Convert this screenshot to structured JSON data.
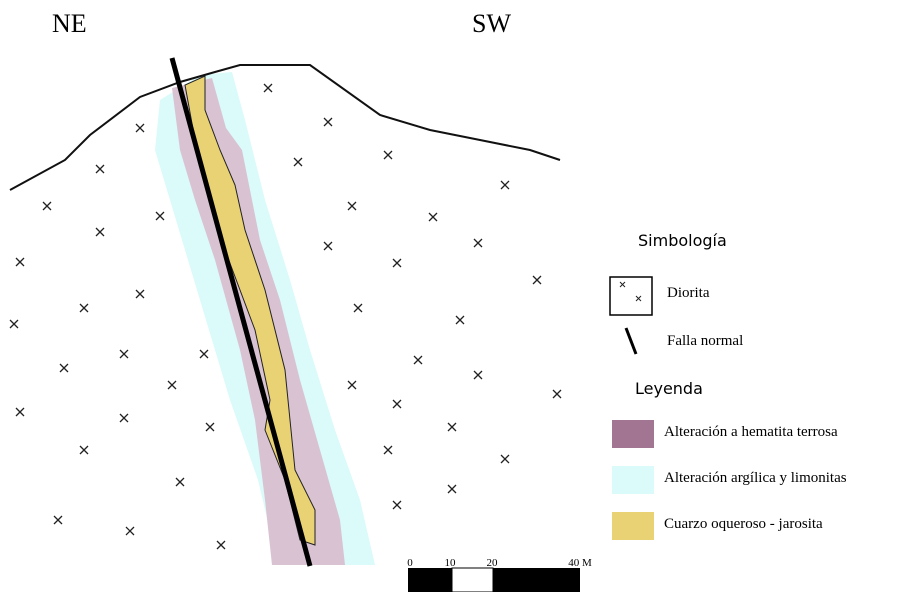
{
  "section": {
    "left_label": "NE",
    "right_label": "SW"
  },
  "legend": {
    "symbols_title": "Simbología",
    "symbols": [
      {
        "label": "Diorita"
      },
      {
        "label": "Falla normal"
      }
    ],
    "legend_title": "Leyenda",
    "items": [
      {
        "label": "Alteración a hematita terrosa",
        "color": "#a27593"
      },
      {
        "label": "Alteración argílica y limonitas",
        "color": "#dbfafa"
      },
      {
        "label": "Cuarzo oqueroso - jarosita",
        "color": "#e9d274"
      }
    ]
  },
  "scale": {
    "labels": [
      "0",
      "10",
      "20",
      "40 M"
    ]
  }
}
